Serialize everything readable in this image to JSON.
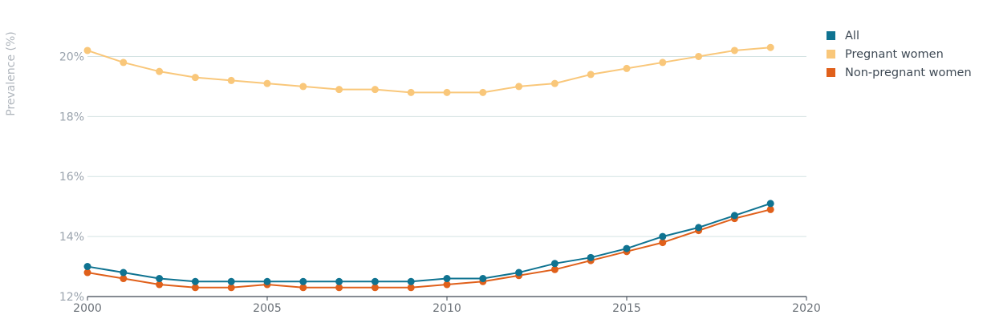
{
  "chart_data": {
    "type": "line",
    "title": "",
    "xlabel": "",
    "ylabel": "Prevalence (%)",
    "xlim": [
      2000,
      2020
    ],
    "ylim": [
      12,
      21
    ],
    "x_ticks": [
      2000,
      2005,
      2010,
      2015,
      2020
    ],
    "x_tick_labels": [
      "2000",
      "2005",
      "2010",
      "2015",
      "2020"
    ],
    "y_ticks": [
      12,
      14,
      16,
      18,
      20
    ],
    "y_tick_labels": [
      "12%",
      "14%",
      "16%",
      "18%",
      "20%"
    ],
    "grid": "horizontal",
    "legend_position": "top-right",
    "x": [
      2000,
      2001,
      2002,
      2003,
      2004,
      2005,
      2006,
      2007,
      2008,
      2009,
      2010,
      2011,
      2012,
      2013,
      2014,
      2015,
      2016,
      2017,
      2018,
      2019
    ],
    "series": [
      {
        "name": "All",
        "color": "#0f7391",
        "values": [
          13.0,
          12.8,
          12.6,
          12.5,
          12.5,
          12.5,
          12.5,
          12.5,
          12.5,
          12.5,
          12.6,
          12.6,
          12.8,
          13.1,
          13.3,
          13.6,
          14.0,
          14.3,
          14.7,
          15.1
        ]
      },
      {
        "name": "Pregnant women",
        "color": "#f9c77a",
        "values": [
          20.2,
          19.8,
          19.5,
          19.3,
          19.2,
          19.1,
          19.0,
          18.9,
          18.9,
          18.8,
          18.8,
          18.8,
          19.0,
          19.1,
          19.4,
          19.6,
          19.8,
          20.0,
          20.2,
          20.3
        ]
      },
      {
        "name": "Non-pregnant women",
        "color": "#e0601b",
        "values": [
          12.8,
          12.6,
          12.4,
          12.3,
          12.3,
          12.4,
          12.3,
          12.3,
          12.3,
          12.3,
          12.4,
          12.5,
          12.7,
          12.9,
          13.2,
          13.5,
          13.8,
          14.2,
          14.6,
          14.9
        ]
      }
    ]
  }
}
